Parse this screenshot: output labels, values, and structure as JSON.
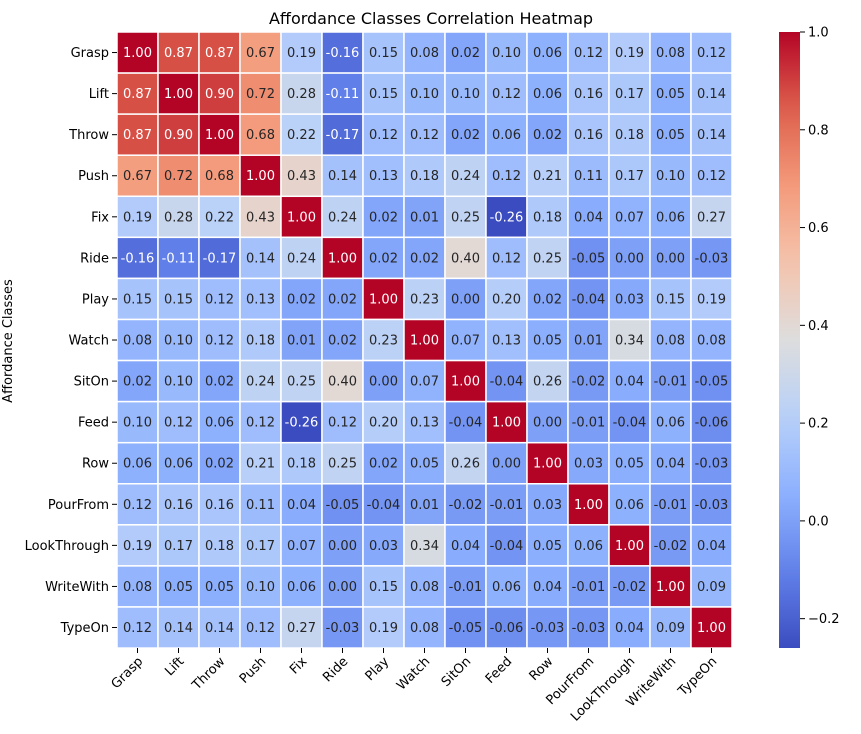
{
  "chart_data": {
    "type": "heatmap",
    "title": "Affordance Classes Correlation Heatmap",
    "ylabel": "Affordance Classes",
    "xlabel": "",
    "colormap": "coolwarm",
    "vmin": -0.26,
    "vmax": 1.0,
    "colorbar_ticks": [
      {
        "value": 1.0,
        "label": "1.0"
      },
      {
        "value": 0.8,
        "label": "0.8"
      },
      {
        "value": 0.6,
        "label": "0.6"
      },
      {
        "value": 0.4,
        "label": "0.4"
      },
      {
        "value": 0.2,
        "label": "0.2"
      },
      {
        "value": 0.0,
        "label": "0.0"
      },
      {
        "value": -0.2,
        "label": "−0.2"
      }
    ],
    "categories": [
      "Grasp",
      "Lift",
      "Throw",
      "Push",
      "Fix",
      "Ride",
      "Play",
      "Watch",
      "SitOn",
      "Feed",
      "Row",
      "PourFrom",
      "LookThrough",
      "WriteWith",
      "TypeOn"
    ],
    "matrix": [
      [
        1.0,
        0.87,
        0.87,
        0.67,
        0.19,
        -0.16,
        0.15,
        0.08,
        0.02,
        0.1,
        0.06,
        0.12,
        0.19,
        0.08,
        0.12
      ],
      [
        0.87,
        1.0,
        0.9,
        0.72,
        0.28,
        -0.11,
        0.15,
        0.1,
        0.1,
        0.12,
        0.06,
        0.16,
        0.17,
        0.05,
        0.14
      ],
      [
        0.87,
        0.9,
        1.0,
        0.68,
        0.22,
        -0.17,
        0.12,
        0.12,
        0.02,
        0.06,
        0.02,
        0.16,
        0.18,
        0.05,
        0.14
      ],
      [
        0.67,
        0.72,
        0.68,
        1.0,
        0.43,
        0.14,
        0.13,
        0.18,
        0.24,
        0.12,
        0.21,
        0.11,
        0.17,
        0.1,
        0.12
      ],
      [
        0.19,
        0.28,
        0.22,
        0.43,
        1.0,
        0.24,
        0.02,
        0.01,
        0.25,
        -0.26,
        0.18,
        0.04,
        0.07,
        0.06,
        0.27
      ],
      [
        -0.16,
        -0.11,
        -0.17,
        0.14,
        0.24,
        1.0,
        0.02,
        0.02,
        0.4,
        0.12,
        0.25,
        -0.05,
        -0.0,
        -0.0,
        -0.03
      ],
      [
        0.15,
        0.15,
        0.12,
        0.13,
        0.02,
        0.02,
        1.0,
        0.23,
        0.0,
        0.2,
        0.02,
        -0.04,
        0.03,
        0.15,
        0.19
      ],
      [
        0.08,
        0.1,
        0.12,
        0.18,
        0.01,
        0.02,
        0.23,
        1.0,
        0.07,
        0.13,
        0.05,
        0.01,
        0.34,
        0.08,
        0.08
      ],
      [
        0.02,
        0.1,
        0.02,
        0.24,
        0.25,
        0.4,
        0.0,
        0.07,
        1.0,
        -0.04,
        0.26,
        -0.02,
        0.04,
        -0.01,
        -0.05
      ],
      [
        0.1,
        0.12,
        0.06,
        0.12,
        -0.26,
        0.12,
        0.2,
        0.13,
        -0.04,
        1.0,
        -0.0,
        -0.01,
        -0.04,
        0.06,
        -0.06
      ],
      [
        0.06,
        0.06,
        0.02,
        0.21,
        0.18,
        0.25,
        0.02,
        0.05,
        0.26,
        -0.0,
        1.0,
        0.03,
        0.05,
        0.04,
        -0.03
      ],
      [
        0.12,
        0.16,
        0.16,
        0.11,
        0.04,
        -0.05,
        -0.04,
        0.01,
        -0.02,
        -0.01,
        0.03,
        1.0,
        0.06,
        -0.01,
        -0.03
      ],
      [
        0.19,
        0.17,
        0.18,
        0.17,
        0.07,
        -0.0,
        0.03,
        0.34,
        0.04,
        -0.04,
        0.05,
        0.06,
        1.0,
        -0.02,
        0.04
      ],
      [
        0.08,
        0.05,
        0.05,
        0.1,
        0.06,
        -0.0,
        0.15,
        0.08,
        -0.01,
        0.06,
        0.04,
        -0.01,
        -0.02,
        1.0,
        0.09
      ],
      [
        0.12,
        0.14,
        0.14,
        0.12,
        0.27,
        -0.03,
        0.19,
        0.08,
        -0.05,
        -0.06,
        -0.03,
        -0.03,
        0.04,
        0.09,
        1.0
      ]
    ]
  }
}
